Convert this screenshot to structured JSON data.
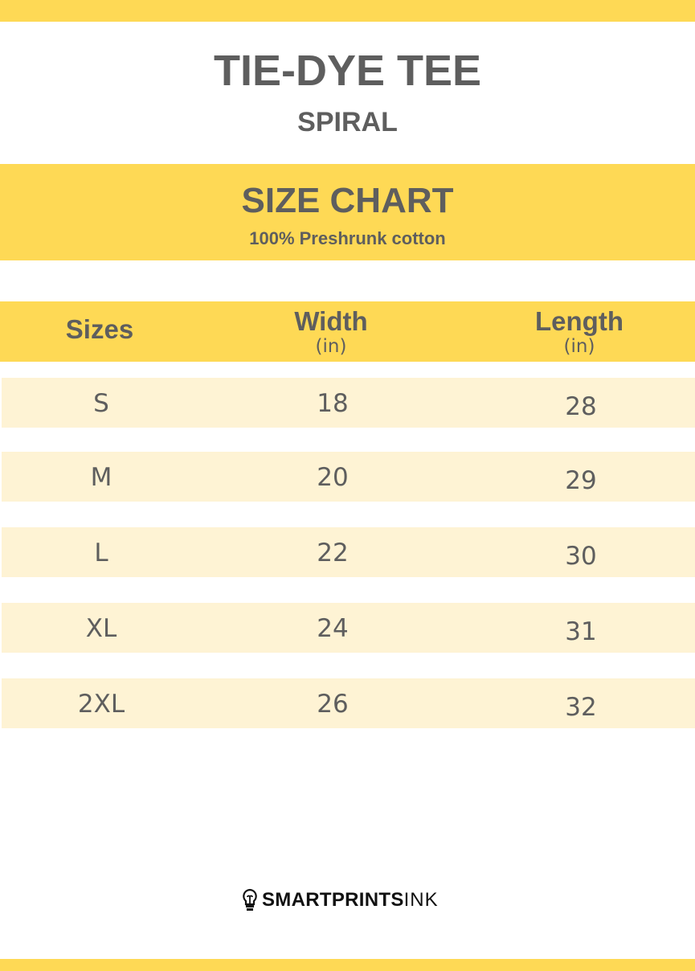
{
  "colors": {
    "accent": "#fed955",
    "row_bg": "#fef3d4",
    "text": "#5e5e5e"
  },
  "title": "TIE-DYE TEE",
  "subtitle": "SPIRAL",
  "chart_title": "SIZE CHART",
  "chart_subtitle": "100% Preshrunk cotton",
  "headers": [
    {
      "label": "Sizes",
      "unit": ""
    },
    {
      "label": "Width",
      "unit": "(in)"
    },
    {
      "label": "Length",
      "unit": "(in)"
    }
  ],
  "rows": [
    {
      "size": "S",
      "width": "18",
      "length": "28"
    },
    {
      "size": "M",
      "width": "20",
      "length": "29"
    },
    {
      "size": "L",
      "width": "22",
      "length": "30"
    },
    {
      "size": "XL",
      "width": "24",
      "length": "31"
    },
    {
      "size": "2XL",
      "width": "26",
      "length": "32"
    }
  ],
  "logo": {
    "icon": "lightbulb-icon",
    "bold": "SMARTPRINTS",
    "light": "INK"
  }
}
